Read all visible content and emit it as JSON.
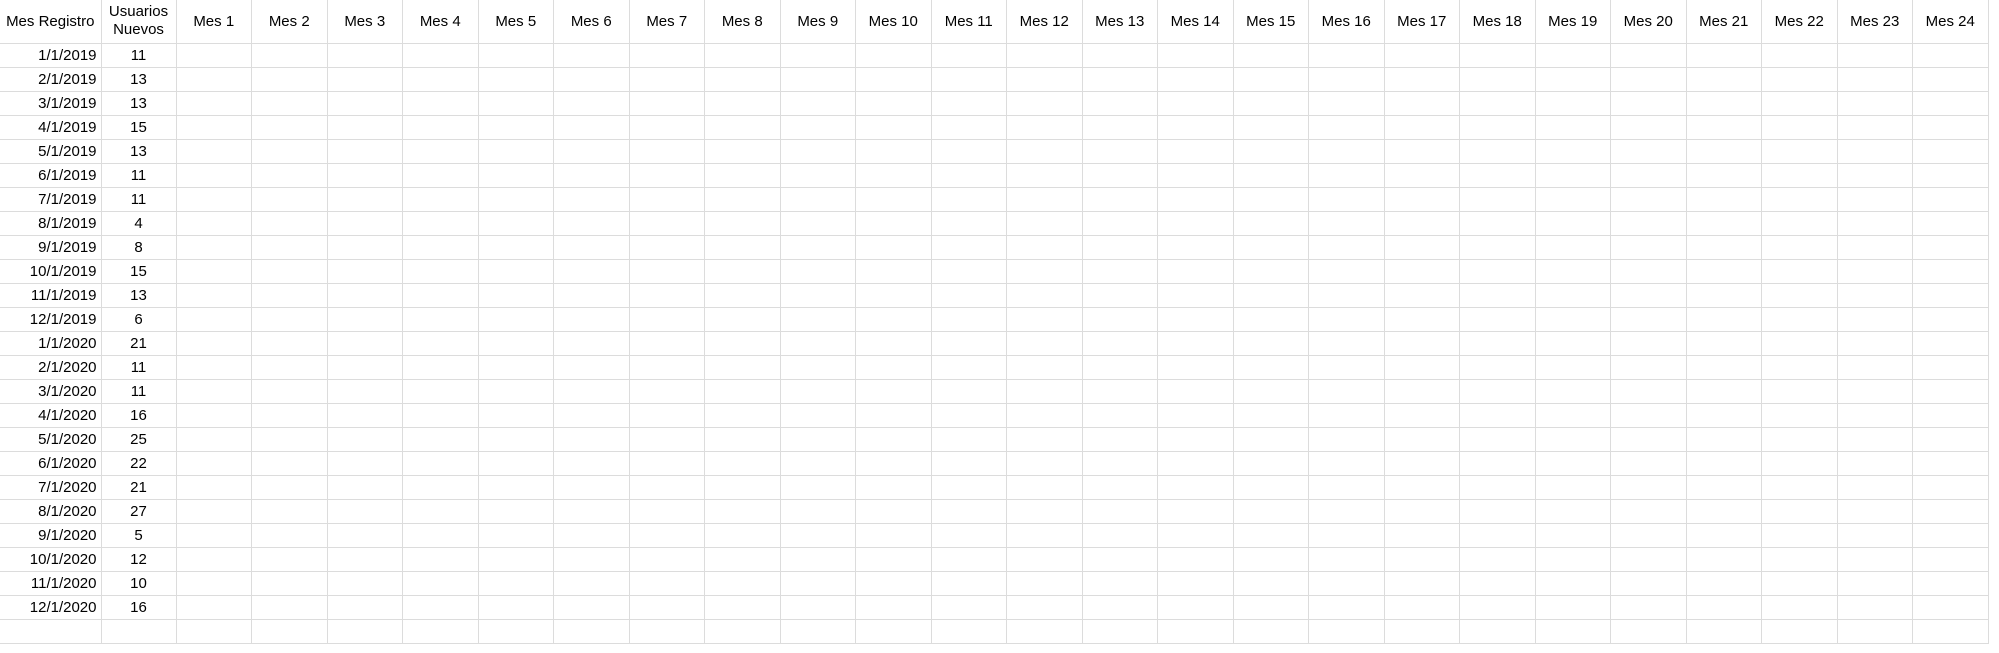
{
  "headers": {
    "registration_month": "Mes Registro",
    "new_users": "Usuarios Nuevos",
    "months": [
      "Mes 1",
      "Mes 2",
      "Mes 3",
      "Mes 4",
      "Mes 5",
      "Mes 6",
      "Mes 7",
      "Mes 8",
      "Mes 9",
      "Mes 10",
      "Mes 11",
      "Mes 12",
      "Mes 13",
      "Mes 14",
      "Mes 15",
      "Mes 16",
      "Mes 17",
      "Mes 18",
      "Mes 19",
      "Mes 20",
      "Mes 21",
      "Mes 22",
      "Mes 23",
      "Mes 24"
    ]
  },
  "rows": [
    {
      "date": "1/1/2019",
      "users": "11"
    },
    {
      "date": "2/1/2019",
      "users": "13"
    },
    {
      "date": "3/1/2019",
      "users": "13"
    },
    {
      "date": "4/1/2019",
      "users": "15"
    },
    {
      "date": "5/1/2019",
      "users": "13"
    },
    {
      "date": "6/1/2019",
      "users": "11"
    },
    {
      "date": "7/1/2019",
      "users": "11"
    },
    {
      "date": "8/1/2019",
      "users": "4"
    },
    {
      "date": "9/1/2019",
      "users": "8"
    },
    {
      "date": "10/1/2019",
      "users": "15"
    },
    {
      "date": "11/1/2019",
      "users": "13"
    },
    {
      "date": "12/1/2019",
      "users": "6"
    },
    {
      "date": "1/1/2020",
      "users": "21"
    },
    {
      "date": "2/1/2020",
      "users": "11"
    },
    {
      "date": "3/1/2020",
      "users": "11"
    },
    {
      "date": "4/1/2020",
      "users": "16"
    },
    {
      "date": "5/1/2020",
      "users": "25"
    },
    {
      "date": "6/1/2020",
      "users": "22"
    },
    {
      "date": "7/1/2020",
      "users": "21"
    },
    {
      "date": "8/1/2020",
      "users": "27"
    },
    {
      "date": "9/1/2020",
      "users": "5"
    },
    {
      "date": "10/1/2020",
      "users": "12"
    },
    {
      "date": "11/1/2020",
      "users": "10"
    },
    {
      "date": "12/1/2020",
      "users": "16"
    }
  ]
}
